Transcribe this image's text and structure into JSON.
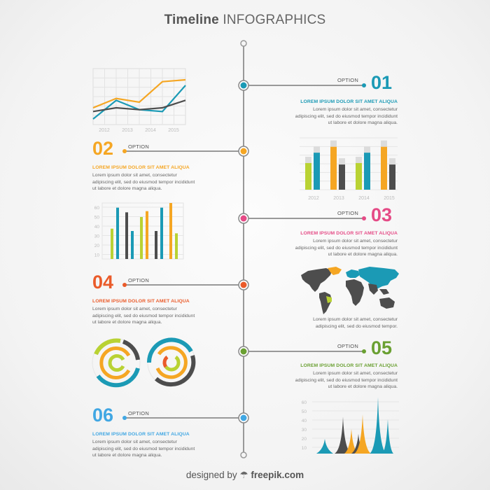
{
  "title": {
    "bold": "Timeline",
    "light": "INFOGRAPHICS"
  },
  "colors": {
    "blue": "#1b9ab5",
    "orange": "#f5a623",
    "pink": "#e54b86",
    "red": "#ea5b2a",
    "green": "#6aa032",
    "lightblue": "#41a7e3",
    "gray": "#4d4d4d",
    "lime": "#b9d233",
    "line": "#999999"
  },
  "items": [
    {
      "number": "01",
      "option": "OPTION",
      "heading": "LOREM IPSUM DOLOR SIT AMET ALIQUA",
      "body": "Lorem ipsum dolor sit amet, consectetur adipiscing elit, sed do eiusmod tempor incididunt ut labore et dolore magna aliqua."
    },
    {
      "number": "02",
      "option": "OPTION",
      "heading": "LOREM IPSUM DOLOR SIT AMET ALIQUA",
      "body": "Lorem ipsum dolor sit amet, consectetur adipiscing elit, sed do eiusmod tempor incididunt ut labore et dolore magna aliqua."
    },
    {
      "number": "03",
      "option": "OPTION",
      "heading": "LOREM IPSUM DOLOR SIT AMET ALIQUA",
      "body": "Lorem ipsum dolor sit amet, consectetur adipiscing elit, sed do eiusmod tempor incididunt ut labore et dolore magna aliqua."
    },
    {
      "number": "04",
      "option": "OPTION",
      "heading": "LOREM IPSUM DOLOR SIT AMET ALIQUA",
      "body": "Lorem ipsum dolor sit amet, consectetur adipiscing elit, sed do eiusmod tempor incididunt ut labore et dolore magna aliqua."
    },
    {
      "number": "05",
      "option": "OPTION",
      "heading": "LOREM IPSUM DOLOR SIT AMET ALIQUA",
      "body": "Lorem ipsum dolor sit amet, consectetur adipiscing elit, sed do eiusmod tempor incididunt ut labore et dolore magna aliqua."
    },
    {
      "number": "06",
      "option": "OPTION",
      "heading": "LOREM IPSUM DOLOR SIT AMET ALIQUA",
      "body": "Lorem ipsum dolor sit amet, consectetur adipiscing elit, sed do eiusmod tempor incididunt ut labore et dolore magna aliqua."
    }
  ],
  "map_text": "Lorem ipsum dolor sit amet, consectetur adipiscing elit, sed do eiusmod tempor.",
  "chart_data": [
    {
      "type": "line",
      "x_ticks": [
        "2012",
        "2013",
        "2014",
        "2015"
      ],
      "series": [
        {
          "color": "#f5a623",
          "values": [
            18,
            28,
            24,
            46,
            48
          ]
        },
        {
          "color": "#1b9ab5",
          "values": [
            6,
            26,
            16,
            14,
            42
          ]
        },
        {
          "color": "#4d4d4d",
          "values": [
            14,
            18,
            16,
            18,
            26
          ]
        }
      ]
    },
    {
      "type": "bar",
      "x_ticks": [
        "2012",
        "2013",
        "2014",
        "2015"
      ],
      "groups": [
        [
          {
            "color": "#b9d233",
            "value": 36
          },
          {
            "color": "#1b9ab5",
            "value": 50
          }
        ],
        [
          {
            "color": "#f5a623",
            "value": 58
          },
          {
            "color": "#4d4d4d",
            "value": 34
          }
        ],
        [
          {
            "color": "#b9d233",
            "value": 36
          },
          {
            "color": "#1b9ab5",
            "value": 50
          }
        ],
        [
          {
            "color": "#f5a623",
            "value": 58
          },
          {
            "color": "#4d4d4d",
            "value": 34
          }
        ]
      ],
      "ylim": [
        0,
        70
      ]
    },
    {
      "type": "bar",
      "y_ticks": [
        "60",
        "50",
        "40",
        "30",
        "20",
        "10"
      ],
      "groups": [
        [
          {
            "color": "#b9d233",
            "value": 26
          },
          {
            "color": "#1b9ab5",
            "value": 44
          }
        ],
        [
          {
            "color": "#4d4d4d",
            "value": 40
          },
          {
            "color": "#1b9ab5",
            "value": 24
          }
        ],
        [
          {
            "color": "#b9d233",
            "value": 36
          },
          {
            "color": "#f5a623",
            "value": 41
          }
        ],
        [
          {
            "color": "#4d4d4d",
            "value": 24
          },
          {
            "color": "#1b9ab5",
            "value": 44
          }
        ],
        [
          {
            "color": "#f5a623",
            "value": 48
          },
          {
            "color": "#b9d233",
            "value": 22
          }
        ]
      ],
      "ylim": [
        0,
        60
      ]
    },
    {
      "type": "area",
      "y_ticks": [
        "60",
        "50",
        "40",
        "30",
        "20",
        "10"
      ],
      "peaks": [
        {
          "color": "#1b9ab5",
          "value": 12
        },
        {
          "color": "#4d4d4d",
          "value": 30
        },
        {
          "color": "#f5a623",
          "value": 20
        },
        {
          "color": "#4d4d4d",
          "value": 16
        },
        {
          "color": "#f5a623",
          "value": 32
        },
        {
          "color": "#1b9ab5",
          "value": 46
        },
        {
          "color": "#1b9ab5",
          "value": 28
        }
      ],
      "ylim": [
        0,
        60
      ]
    }
  ],
  "footer": {
    "prefix": "designed by",
    "brand": "freepik.com"
  }
}
